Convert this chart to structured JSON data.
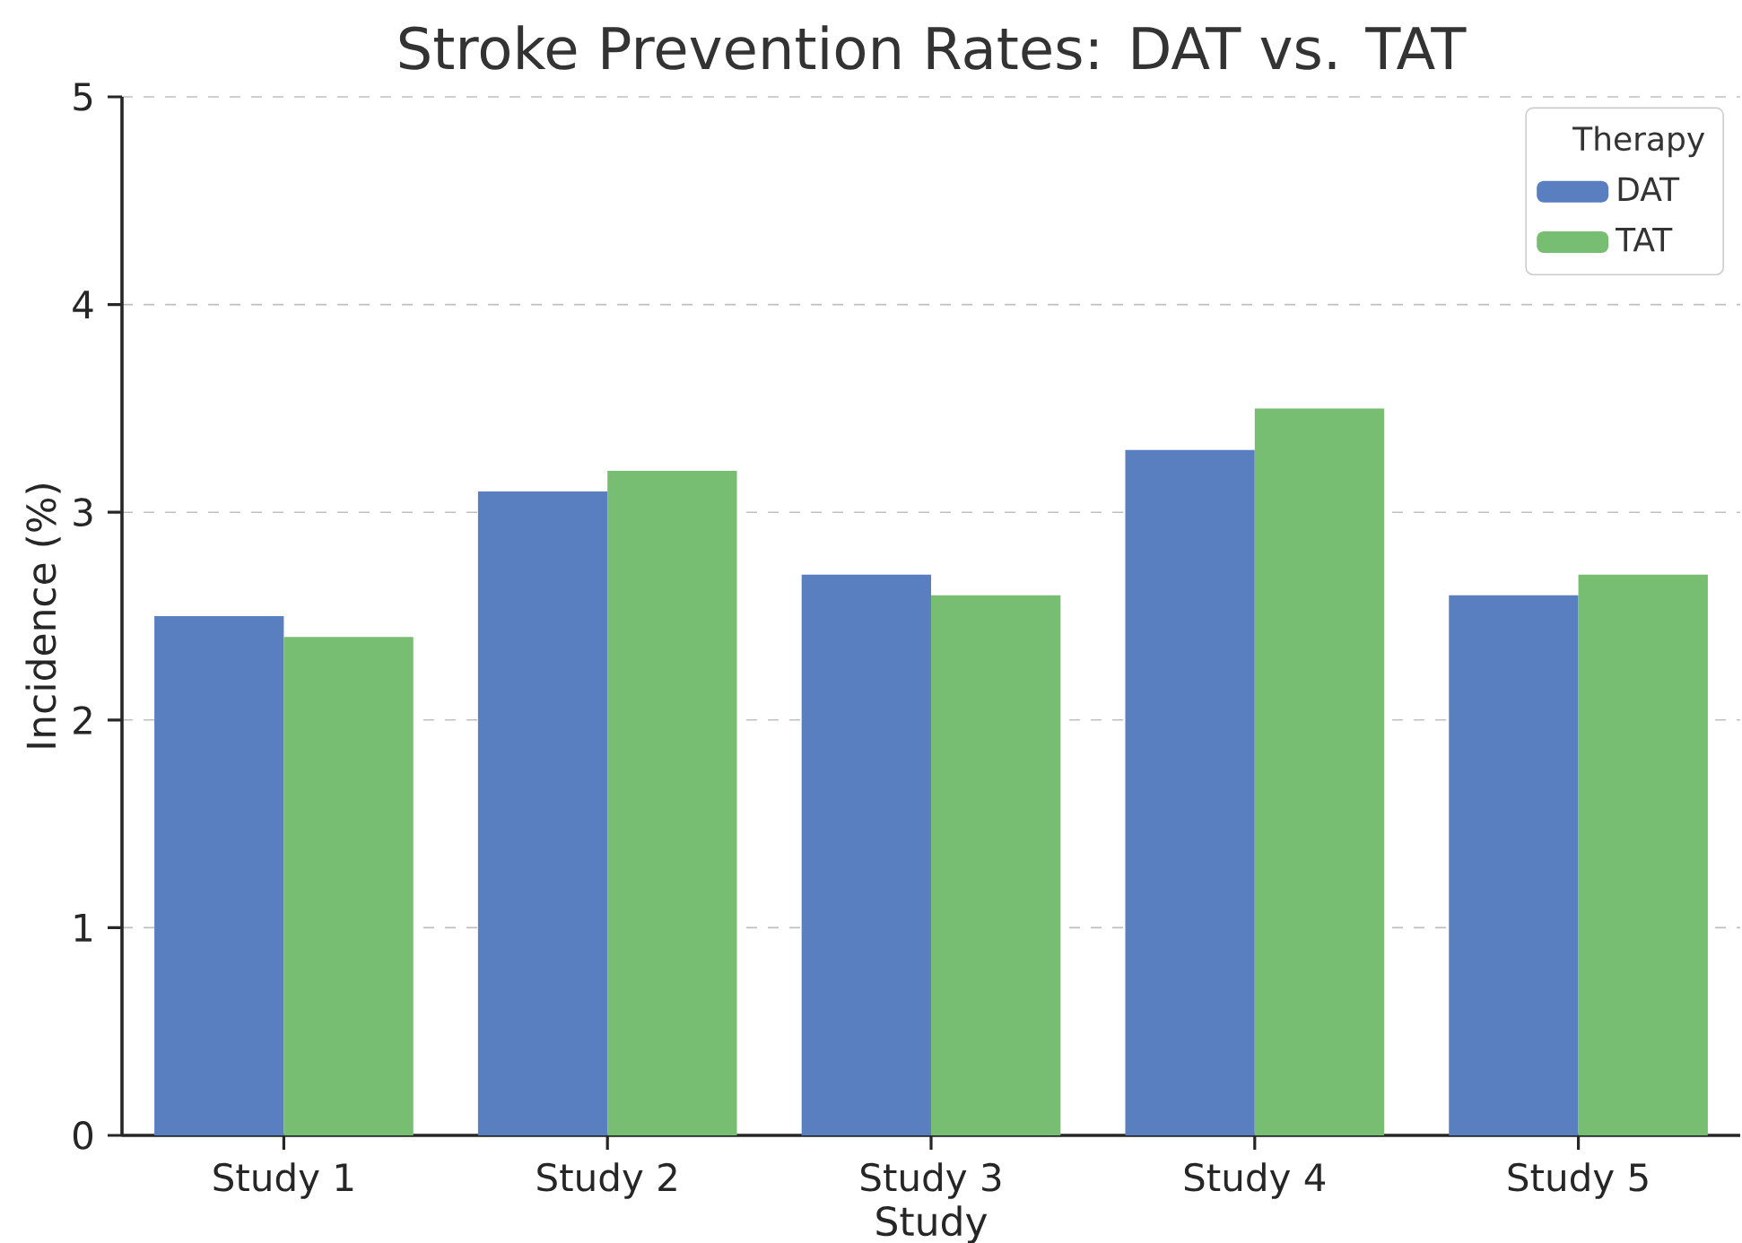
{
  "chart_data": {
    "type": "bar",
    "title": "Stroke Prevention Rates: DAT vs. TAT",
    "xlabel": "Study",
    "ylabel": "Incidence (%)",
    "legend_title": "Therapy",
    "categories": [
      "Study 1",
      "Study 2",
      "Study 3",
      "Study 4",
      "Study 5"
    ],
    "series": [
      {
        "name": "DAT",
        "color": "#5a7fc0",
        "values": [
          2.5,
          3.1,
          2.7,
          3.3,
          2.6
        ]
      },
      {
        "name": "TAT",
        "color": "#77bd72",
        "values": [
          2.4,
          3.2,
          2.6,
          3.5,
          2.7
        ]
      }
    ],
    "ylim": [
      0,
      5
    ],
    "yticks": [
      0,
      1,
      2,
      3,
      4,
      5
    ],
    "grid": "y",
    "legend": "top right"
  }
}
